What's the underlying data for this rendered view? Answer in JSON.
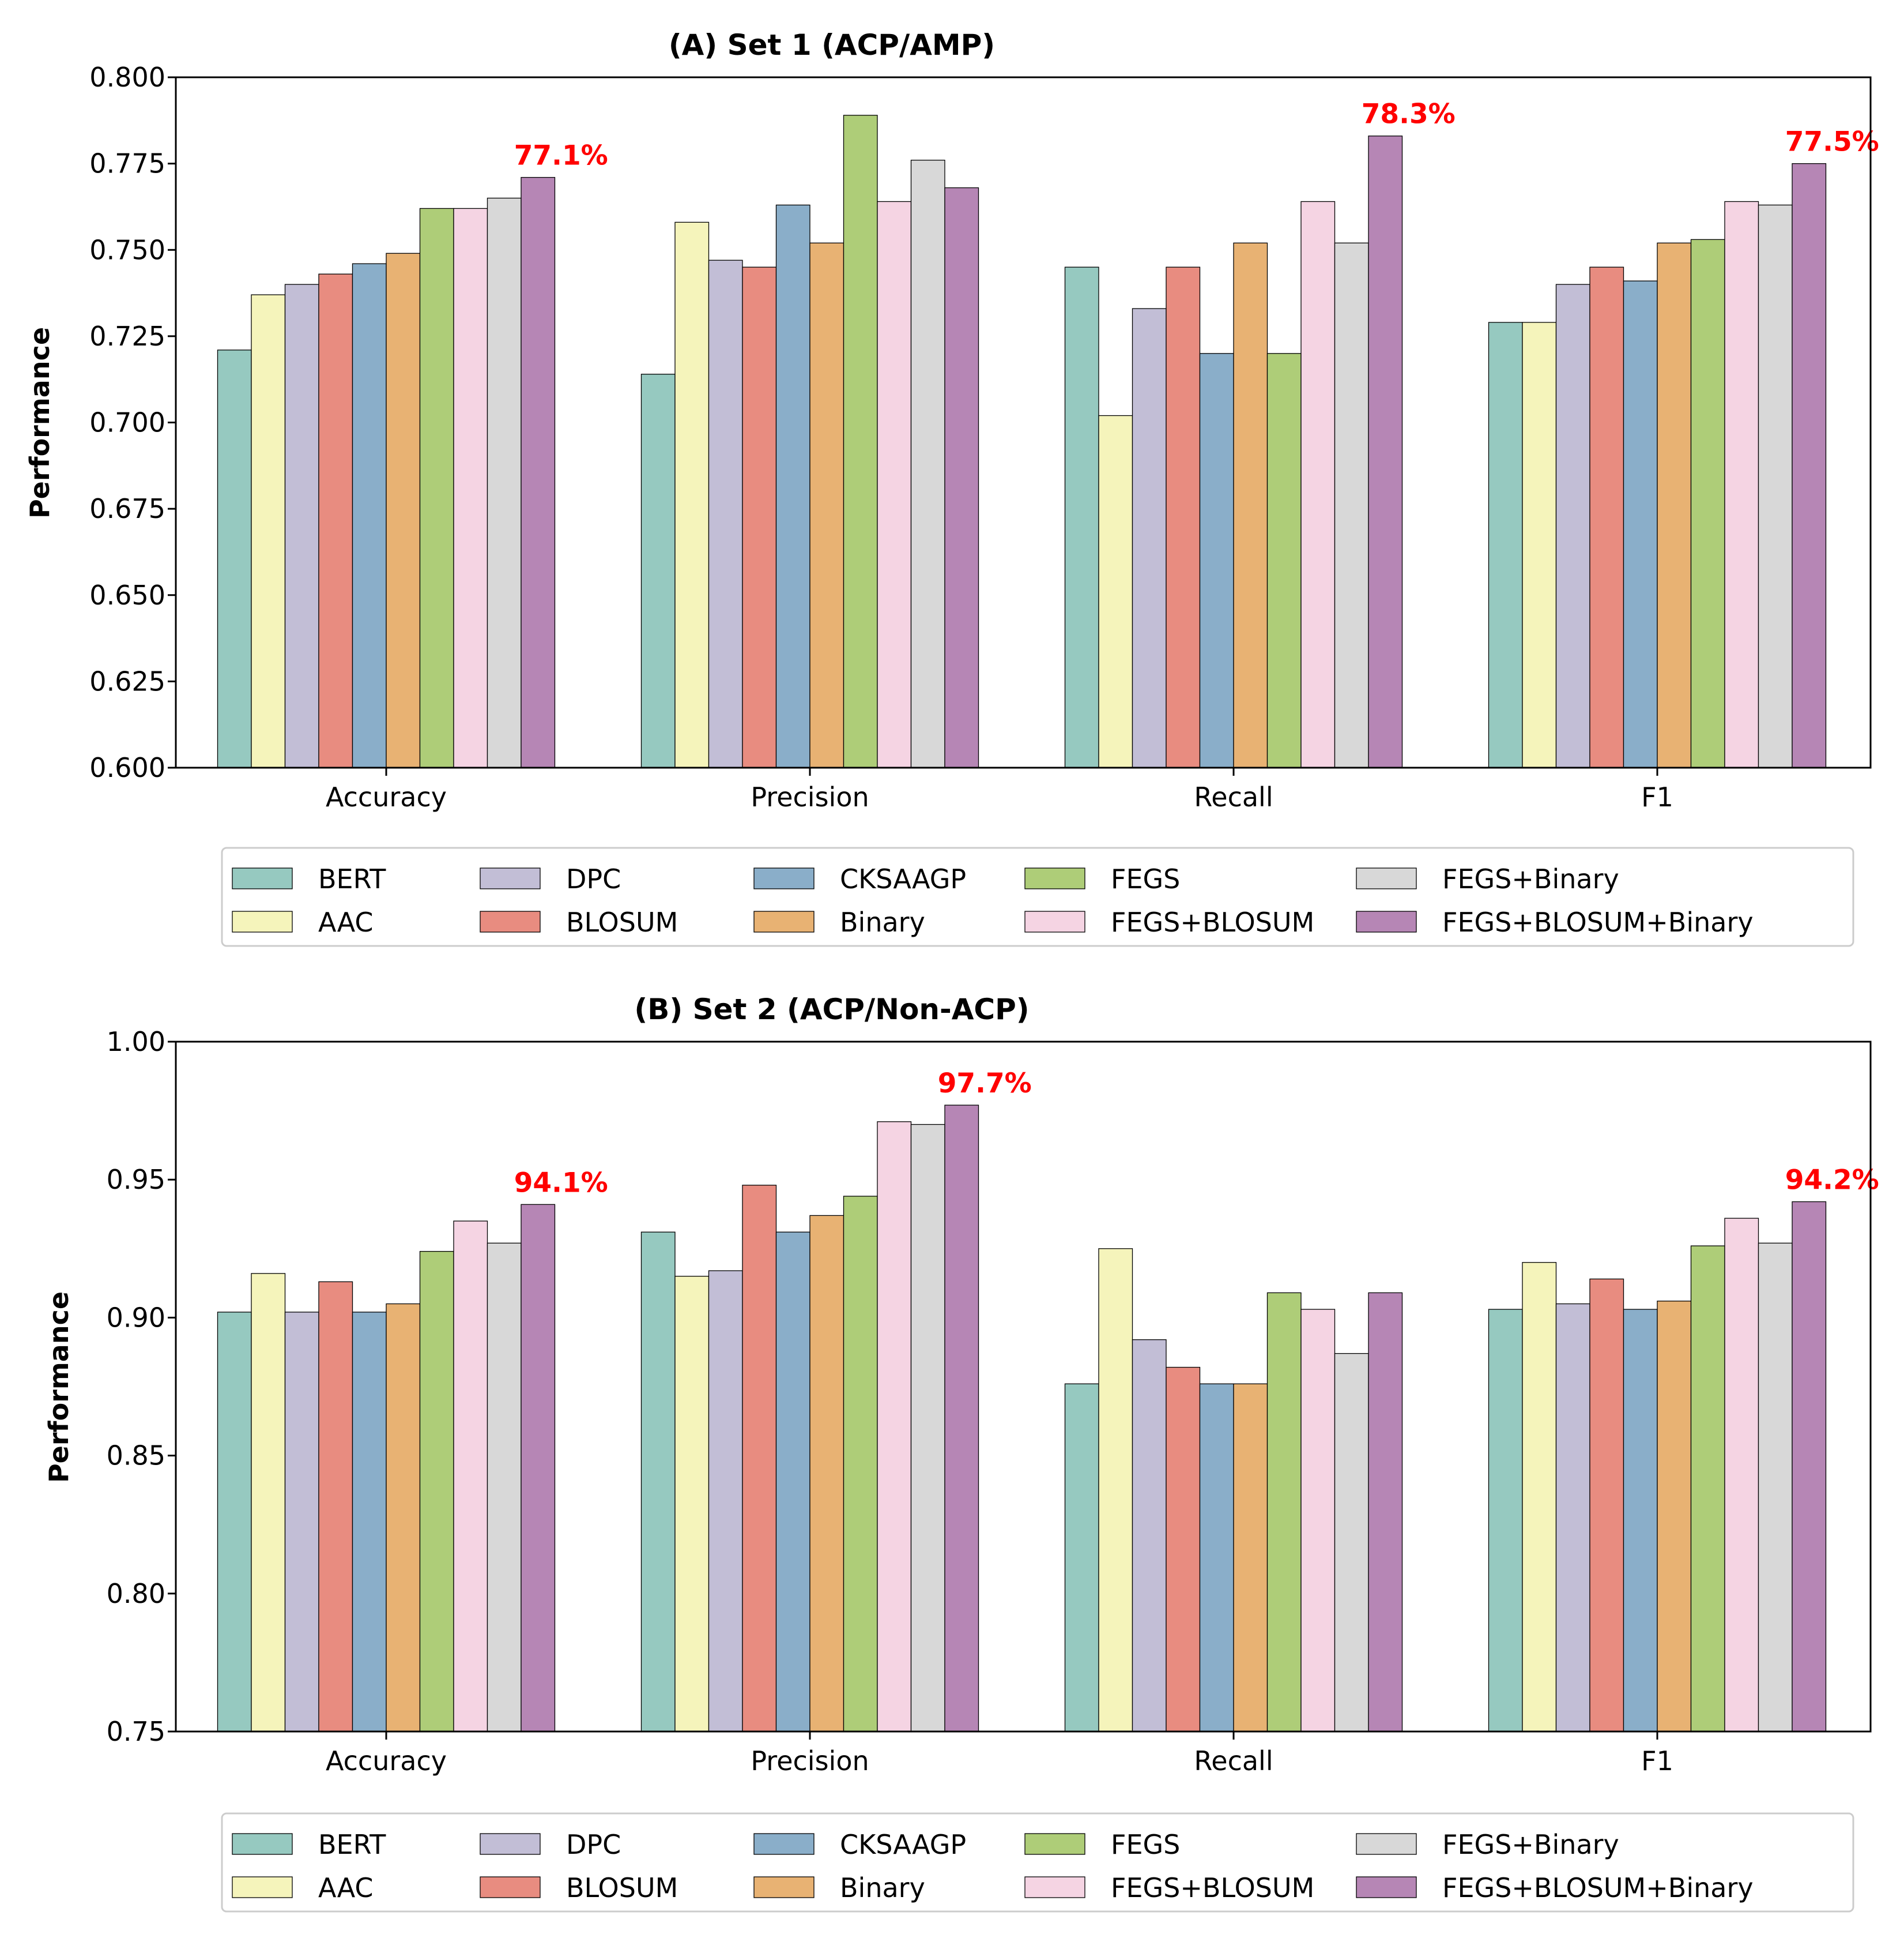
{
  "chart_data": [
    {
      "type": "bar",
      "title": "(A) Set 1 (ACP/AMP)",
      "xlabel": "",
      "ylabel": "Performance",
      "ylim": [
        0.6,
        0.8
      ],
      "yticks": [
        0.6,
        0.625,
        0.65,
        0.675,
        0.7,
        0.725,
        0.75,
        0.775,
        0.8
      ],
      "ytick_labels": [
        "0.600",
        "0.625",
        "0.650",
        "0.675",
        "0.700",
        "0.725",
        "0.750",
        "0.775",
        "0.800"
      ],
      "categories": [
        "Accuracy",
        "Precision",
        "Recall",
        "F1"
      ],
      "series": [
        {
          "name": "BERT",
          "color": "#96c9c0",
          "values": [
            0.721,
            0.714,
            0.745,
            0.729
          ]
        },
        {
          "name": "AAC",
          "color": "#f5f4bb",
          "values": [
            0.737,
            0.758,
            0.702,
            0.729
          ]
        },
        {
          "name": "DPC",
          "color": "#c2bed6",
          "values": [
            0.74,
            0.747,
            0.733,
            0.74
          ]
        },
        {
          "name": "BLOSUM",
          "color": "#e88c80",
          "values": [
            0.743,
            0.745,
            0.745,
            0.745
          ]
        },
        {
          "name": "CKSAAGP",
          "color": "#8aaec9",
          "values": [
            0.746,
            0.763,
            0.72,
            0.741
          ]
        },
        {
          "name": "Binary",
          "color": "#e8b273",
          "values": [
            0.749,
            0.752,
            0.752,
            0.752
          ]
        },
        {
          "name": "FEGS",
          "color": "#aecd78",
          "values": [
            0.762,
            0.789,
            0.72,
            0.753
          ]
        },
        {
          "name": "FEGS+BLOSUM",
          "color": "#f5d4e3",
          "values": [
            0.762,
            0.764,
            0.764,
            0.764
          ]
        },
        {
          "name": "FEGS+Binary",
          "color": "#d8d8d8",
          "values": [
            0.765,
            0.776,
            0.752,
            0.763
          ]
        },
        {
          "name": "FEGS+BLOSUM+Binary",
          "color": "#b686b5",
          "values": [
            0.771,
            0.768,
            0.783,
            0.775
          ]
        }
      ],
      "annotations": [
        {
          "category": "Accuracy",
          "series": "FEGS+BLOSUM+Binary",
          "text": "77.1%",
          "color": "#ff0000"
        },
        {
          "category": "Recall",
          "series": "FEGS+BLOSUM+Binary",
          "text": "78.3%",
          "color": "#ff0000"
        },
        {
          "category": "F1",
          "series": "FEGS+BLOSUM+Binary",
          "text": "77.5%",
          "color": "#ff0000"
        }
      ],
      "legend": {
        "placement": "below-plot",
        "ncol": 5
      }
    },
    {
      "type": "bar",
      "title": "(B) Set 2 (ACP/Non-ACP)",
      "xlabel": "",
      "ylabel": "Performance",
      "ylim": [
        0.75,
        1.0
      ],
      "yticks": [
        0.75,
        0.8,
        0.85,
        0.9,
        0.95,
        1.0
      ],
      "ytick_labels": [
        "0.75",
        "0.80",
        "0.85",
        "0.90",
        "0.95",
        "1.00"
      ],
      "categories": [
        "Accuracy",
        "Precision",
        "Recall",
        "F1"
      ],
      "series": [
        {
          "name": "BERT",
          "color": "#96c9c0",
          "values": [
            0.902,
            0.931,
            0.876,
            0.903
          ]
        },
        {
          "name": "AAC",
          "color": "#f5f4bb",
          "values": [
            0.916,
            0.915,
            0.925,
            0.92
          ]
        },
        {
          "name": "DPC",
          "color": "#c2bed6",
          "values": [
            0.902,
            0.917,
            0.892,
            0.905
          ]
        },
        {
          "name": "BLOSUM",
          "color": "#e88c80",
          "values": [
            0.913,
            0.948,
            0.882,
            0.914
          ]
        },
        {
          "name": "CKSAAGP",
          "color": "#8aaec9",
          "values": [
            0.902,
            0.931,
            0.876,
            0.903
          ]
        },
        {
          "name": "Binary",
          "color": "#e8b273",
          "values": [
            0.905,
            0.937,
            0.876,
            0.906
          ]
        },
        {
          "name": "FEGS",
          "color": "#aecd78",
          "values": [
            0.924,
            0.944,
            0.909,
            0.926
          ]
        },
        {
          "name": "FEGS+BLOSUM",
          "color": "#f5d4e3",
          "values": [
            0.935,
            0.971,
            0.903,
            0.936
          ]
        },
        {
          "name": "FEGS+Binary",
          "color": "#d8d8d8",
          "values": [
            0.927,
            0.97,
            0.887,
            0.927
          ]
        },
        {
          "name": "FEGS+BLOSUM+Binary",
          "color": "#b686b5",
          "values": [
            0.941,
            0.977,
            0.909,
            0.942
          ]
        }
      ],
      "annotations": [
        {
          "category": "Accuracy",
          "series": "FEGS+BLOSUM+Binary",
          "text": "94.1%",
          "color": "#ff0000"
        },
        {
          "category": "Precision",
          "series": "FEGS+BLOSUM+Binary",
          "text": "97.7%",
          "color": "#ff0000"
        },
        {
          "category": "F1",
          "series": "FEGS+BLOSUM+Binary",
          "text": "94.2%",
          "color": "#ff0000"
        }
      ],
      "legend": {
        "placement": "below-plot",
        "ncol": 5
      }
    }
  ]
}
